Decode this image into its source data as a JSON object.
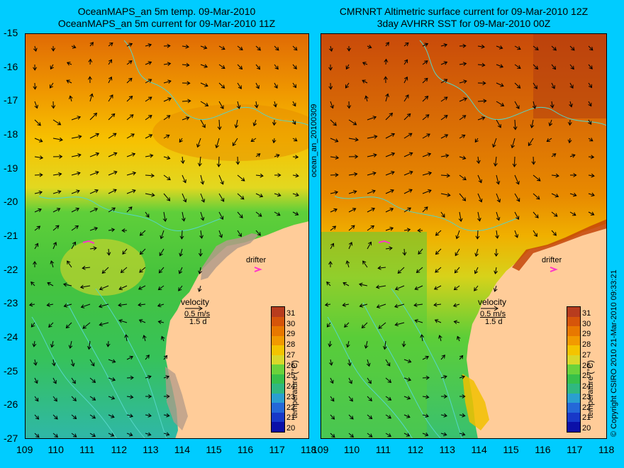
{
  "left_panel": {
    "title_line1": "OceanMAPS_an 5m temp. 09-Mar-2010",
    "title_line2": "OceanMAPS_an 5m current for 09-Mar-2010 11Z",
    "drifter_label": "drifter",
    "velocity_label": "velocity",
    "velocity_scale": "0.5 m/s",
    "velocity_time": "1.5 d"
  },
  "right_panel": {
    "title_line1": "CMRNRT Altimetric surface current for 09-Mar-2010 12Z",
    "title_line2": "3day AVHRR SST for 09-Mar-2010 00Z",
    "drifter_label": "drifter",
    "velocity_label": "velocity",
    "velocity_scale": "0.5 m/s",
    "velocity_time": "1.5 d"
  },
  "side_label": "ocean_an_20100309",
  "copyright": "© Copyright CSIRO 2010   21-Mar-2010 09:33:21",
  "colorbar": {
    "label": "temperature (°C)",
    "ticks": [
      "31",
      "30",
      "29",
      "28",
      "27",
      "26",
      "25",
      "24",
      "23",
      "22",
      "21",
      "20"
    ]
  },
  "axes": {
    "lat_ticks": [
      "-15",
      "-16",
      "-17",
      "-18",
      "-19",
      "-20",
      "-21",
      "-22",
      "-23",
      "-24",
      "-25",
      "-26",
      "-27"
    ],
    "lon_ticks": [
      "109",
      "110",
      "111",
      "112",
      "113",
      "114",
      "115",
      "116",
      "117",
      "118"
    ]
  },
  "colors": {
    "background": "#00ccff",
    "land": "#ffcc99",
    "coastline_outline": "#b39b8a",
    "contour": "#55d6c8",
    "drifter": "#ff33cc"
  }
}
